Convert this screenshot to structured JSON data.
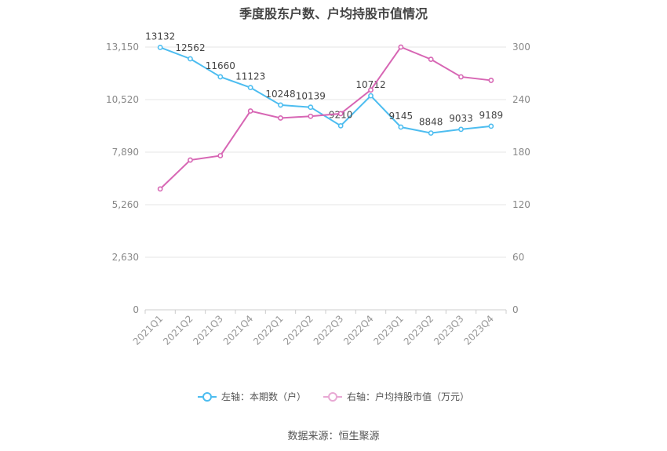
{
  "chart_data": {
    "type": "line",
    "title": "季度股东户数、户均持股市值情况",
    "categories": [
      "2021Q1",
      "2021Q2",
      "2021Q3",
      "2021Q4",
      "2022Q1",
      "2022Q2",
      "2022Q3",
      "2022Q4",
      "2023Q1",
      "2023Q2",
      "2023Q3",
      "2023Q4"
    ],
    "series": [
      {
        "name": "左轴：本期数（户）",
        "axis": "left",
        "color": "#4dbdf0",
        "values": [
          13132,
          12562,
          11660,
          11123,
          10248,
          10139,
          9210,
          10712,
          9145,
          8848,
          9033,
          9189
        ],
        "labels": [
          "13132",
          "12562",
          "11660",
          "11123",
          "10248",
          "10139",
          "9210",
          "10712",
          "9145",
          "8848",
          "9033",
          "9189"
        ]
      },
      {
        "name": "右轴：户均持股市值（万元）",
        "axis": "right",
        "color": "#d766b4",
        "values": [
          138,
          171,
          176,
          227,
          219,
          221,
          224,
          251,
          300,
          286,
          266,
          262
        ]
      }
    ],
    "left_axis": {
      "ticks": [
        0,
        2630,
        5260,
        7890,
        10520,
        13150
      ],
      "tick_labels": [
        "0",
        "2,630",
        "5,260",
        "7,890",
        "10,520",
        "13,150"
      ],
      "ylim": [
        0,
        13150
      ]
    },
    "right_axis": {
      "ticks": [
        0,
        60,
        120,
        180,
        240,
        300
      ],
      "tick_labels": [
        "0",
        "60",
        "120",
        "180",
        "240",
        "300"
      ],
      "ylim": [
        0,
        300
      ]
    },
    "grid": true,
    "legend_position": "bottom"
  },
  "source": "数据来源：恒生聚源"
}
